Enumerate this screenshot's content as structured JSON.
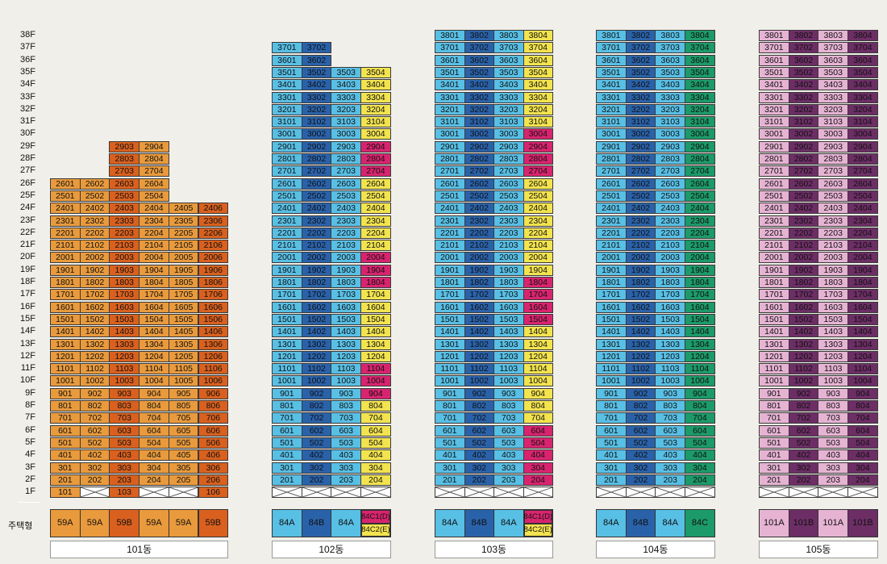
{
  "floors": [
    "38F",
    "37F",
    "36F",
    "35F",
    "34F",
    "33F",
    "32F",
    "31F",
    "30F",
    "29F",
    "28F",
    "27F",
    "26F",
    "25F",
    "24F",
    "23F",
    "22F",
    "21F",
    "20F",
    "19F",
    "18F",
    "17F",
    "16F",
    "15F",
    "14F",
    "13F",
    "12F",
    "11F",
    "10F",
    "9F",
    "8F",
    "7F",
    "6F",
    "5F",
    "4F",
    "3F",
    "2F",
    "1F"
  ],
  "type_row_label": "주택형",
  "colors": {
    "orange_a": "#e99a3c",
    "orange_b": "#d9601e",
    "light_blue": "#58bfe5",
    "dark_blue": "#2a62aa",
    "yellow": "#f2e34f",
    "magenta": "#d8246f",
    "green": "#1c9a6a",
    "light_pink": "#e6b3d3",
    "dark_purple": "#6d2e66"
  },
  "buildings": [
    {
      "name": "101동",
      "types": [
        {
          "label": "59A",
          "color": "#e99a3c"
        },
        {
          "label": "59A",
          "color": "#e99a3c"
        },
        {
          "label": "59B",
          "color": "#d9601e"
        },
        {
          "label": "59A",
          "color": "#e99a3c"
        },
        {
          "label": "59A",
          "color": "#e99a3c"
        },
        {
          "label": "59B",
          "color": "#d9601e"
        }
      ]
    },
    {
      "name": "102동",
      "types": [
        {
          "label": "84A",
          "color": "#58bfe5"
        },
        {
          "label": "84B",
          "color": "#2a62aa"
        },
        {
          "label": "84A",
          "color": "#58bfe5"
        },
        {
          "label": "84C1(D)",
          "label2": "84C2(E)",
          "color": "#d8246f",
          "color2": "#f2e34f"
        }
      ]
    },
    {
      "name": "103동",
      "types": [
        {
          "label": "84A",
          "color": "#58bfe5"
        },
        {
          "label": "84B",
          "color": "#2a62aa"
        },
        {
          "label": "84A",
          "color": "#58bfe5"
        },
        {
          "label": "84C1(D)",
          "label2": "84C2(E)",
          "color": "#d8246f",
          "color2": "#f2e34f"
        }
      ]
    },
    {
      "name": "104동",
      "types": [
        {
          "label": "84A",
          "color": "#58bfe5"
        },
        {
          "label": "84B",
          "color": "#2a62aa"
        },
        {
          "label": "84A",
          "color": "#58bfe5"
        },
        {
          "label": "84C",
          "color": "#1c9a6a"
        }
      ]
    },
    {
      "name": "105동",
      "types": [
        {
          "label": "101A",
          "color": "#e6b3d3"
        },
        {
          "label": "101B",
          "color": "#6d2e66"
        },
        {
          "label": "101A",
          "color": "#e6b3d3"
        },
        {
          "label": "101B",
          "color": "#6d2e66"
        }
      ]
    }
  ],
  "magenta_units": {
    "102동": [
      29,
      28,
      27,
      20,
      19,
      18,
      11,
      10,
      9
    ],
    "103동": [
      30,
      29,
      28,
      27,
      18,
      17,
      16,
      15,
      6,
      5,
      4,
      3,
      2
    ]
  },
  "first_floor_units": {
    "101동": [
      "101",
      "",
      "103",
      "",
      "",
      "106"
    ]
  }
}
